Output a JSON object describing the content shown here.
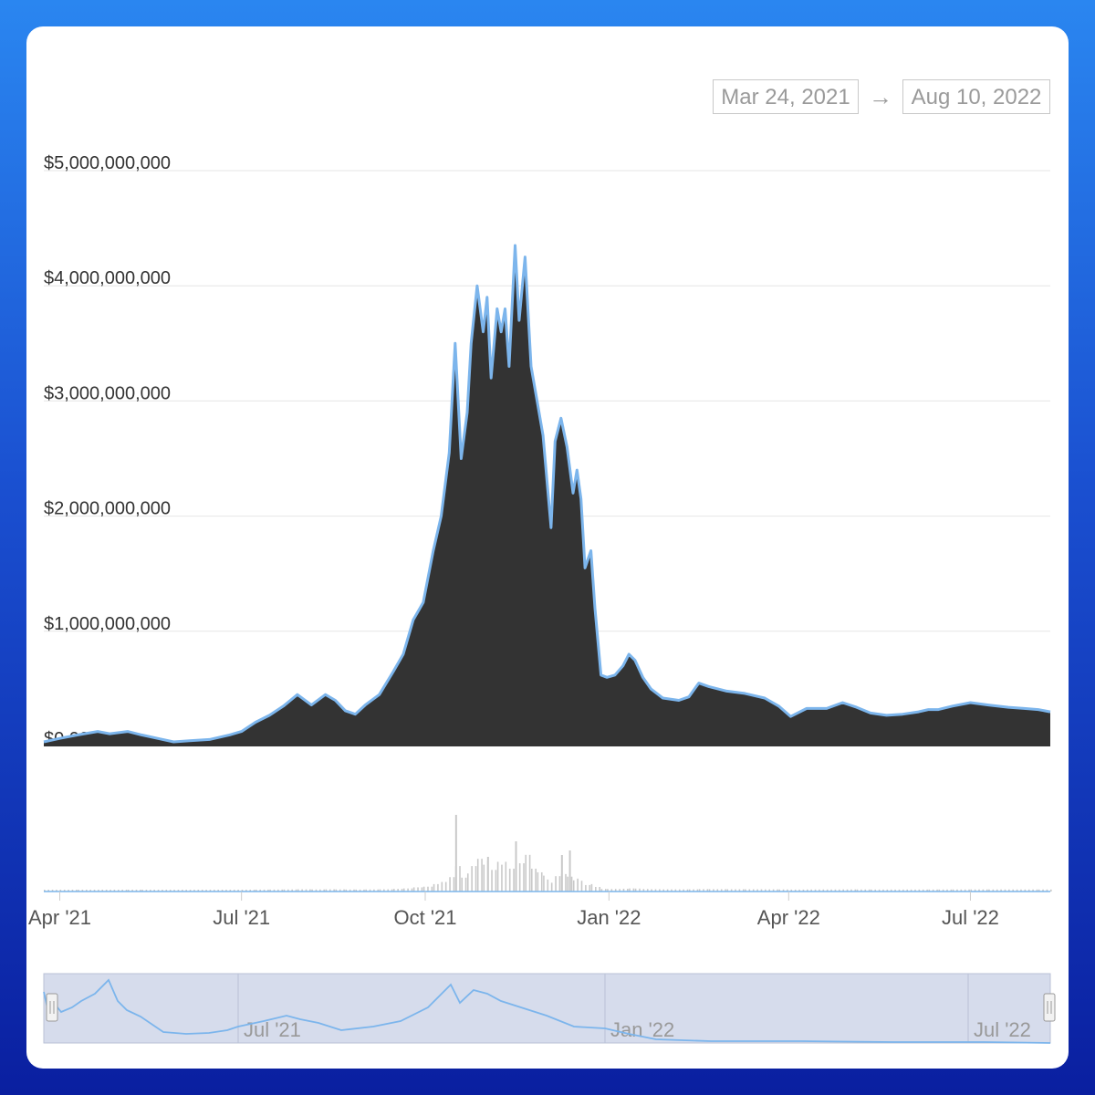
{
  "range": {
    "from": "Mar 24, 2021",
    "arrow": "→",
    "to": "Aug 10, 2022"
  },
  "colors": {
    "area": "#333333",
    "line": "#7cb5ec",
    "grid": "#e6e6e6",
    "volume": "#c9c9c9",
    "navigator_fill": "#d6dcec"
  },
  "chart_data": {
    "type": "area",
    "title": "",
    "xlabel": "",
    "ylabel": "",
    "y_ticks": [
      "$0.00",
      "$1,000,000,000",
      "$2,000,000,000",
      "$3,000,000,000",
      "$4,000,000,000",
      "$5,000,000,000"
    ],
    "ylim": [
      0,
      5000000000
    ],
    "x_ticks": [
      "Apr '21",
      "Jul '21",
      "Oct '21",
      "Jan '22",
      "Apr '22",
      "Jul '22"
    ],
    "navigator_ticks": [
      "Jul '21",
      "Jan '22",
      "Jul '22"
    ],
    "xlim": [
      "2021-03-24",
      "2022-08-10"
    ],
    "series": [
      {
        "type": "area",
        "x": [
          "2021-03-24",
          "2021-04-01",
          "2021-04-10",
          "2021-04-20",
          "2021-04-26",
          "2021-05-05",
          "2021-05-12",
          "2021-05-20",
          "2021-05-28",
          "2021-06-05",
          "2021-06-15",
          "2021-06-25",
          "2021-07-01",
          "2021-07-08",
          "2021-07-15",
          "2021-07-22",
          "2021-07-29",
          "2021-08-05",
          "2021-08-12",
          "2021-08-17",
          "2021-08-22",
          "2021-08-27",
          "2021-09-01",
          "2021-09-08",
          "2021-09-15",
          "2021-09-20",
          "2021-09-25",
          "2021-09-30",
          "2021-10-05",
          "2021-10-09",
          "2021-10-13",
          "2021-10-16",
          "2021-10-19",
          "2021-10-22",
          "2021-10-24",
          "2021-10-27",
          "2021-10-30",
          "2021-11-01",
          "2021-11-03",
          "2021-11-06",
          "2021-11-08",
          "2021-11-10",
          "2021-11-12",
          "2021-11-15",
          "2021-11-17",
          "2021-11-20",
          "2021-11-23",
          "2021-11-26",
          "2021-11-29",
          "2021-12-01",
          "2021-12-03",
          "2021-12-05",
          "2021-12-08",
          "2021-12-11",
          "2021-12-14",
          "2021-12-16",
          "2021-12-18",
          "2021-12-20",
          "2021-12-23",
          "2021-12-25",
          "2021-12-28",
          "2021-12-31",
          "2022-01-04",
          "2022-01-08",
          "2022-01-11",
          "2022-01-14",
          "2022-01-18",
          "2022-01-22",
          "2022-01-28",
          "2022-02-05",
          "2022-02-10",
          "2022-02-15",
          "2022-02-20",
          "2022-03-01",
          "2022-03-10",
          "2022-03-20",
          "2022-03-27",
          "2022-04-02",
          "2022-04-10",
          "2022-04-20",
          "2022-04-28",
          "2022-05-05",
          "2022-05-12",
          "2022-05-20",
          "2022-05-28",
          "2022-06-05",
          "2022-06-10",
          "2022-06-15",
          "2022-06-22",
          "2022-07-01",
          "2022-07-10",
          "2022-07-20",
          "2022-07-28",
          "2022-08-04",
          "2022-08-10"
        ],
        "values": [
          40000000,
          70000000,
          100000000,
          130000000,
          110000000,
          130000000,
          100000000,
          70000000,
          40000000,
          50000000,
          60000000,
          100000000,
          130000000,
          210000000,
          270000000,
          350000000,
          450000000,
          360000000,
          450000000,
          400000000,
          310000000,
          280000000,
          360000000,
          450000000,
          650000000,
          800000000,
          1100000000,
          1250000000,
          1700000000,
          2000000000,
          2550000000,
          3500000000,
          2500000000,
          2900000000,
          3500000000,
          4000000000,
          3600000000,
          3900000000,
          3200000000,
          3800000000,
          3600000000,
          3800000000,
          3300000000,
          4350000000,
          3700000000,
          4250000000,
          3300000000,
          3000000000,
          2700000000,
          2300000000,
          1900000000,
          2650000000,
          2850000000,
          2600000000,
          2200000000,
          2400000000,
          2150000000,
          1550000000,
          1700000000,
          1200000000,
          620000000,
          600000000,
          620000000,
          700000000,
          800000000,
          750000000,
          600000000,
          500000000,
          420000000,
          400000000,
          430000000,
          550000000,
          520000000,
          480000000,
          460000000,
          420000000,
          350000000,
          260000000,
          330000000,
          330000000,
          380000000,
          340000000,
          290000000,
          270000000,
          280000000,
          300000000,
          320000000,
          320000000,
          350000000,
          380000000,
          360000000,
          340000000,
          330000000,
          320000000,
          300000000
        ]
      }
    ]
  }
}
